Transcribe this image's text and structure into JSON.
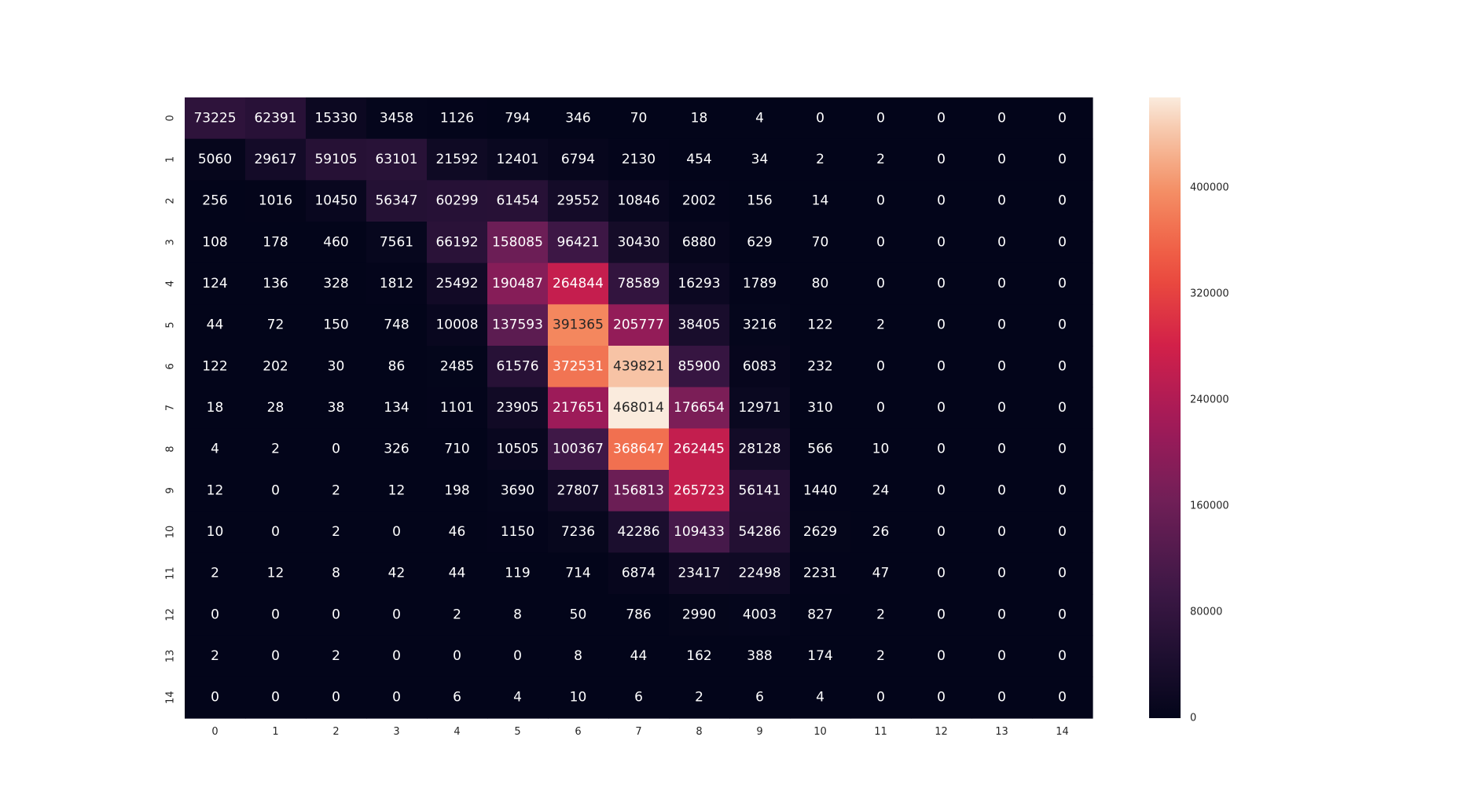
{
  "chart_data": {
    "type": "heatmap",
    "row_labels": [
      "0",
      "1",
      "2",
      "3",
      "4",
      "5",
      "6",
      "7",
      "8",
      "9",
      "10",
      "11",
      "12",
      "13",
      "14"
    ],
    "col_labels": [
      "0",
      "1",
      "2",
      "3",
      "4",
      "5",
      "6",
      "7",
      "8",
      "9",
      "10",
      "11",
      "12",
      "13",
      "14"
    ],
    "values": [
      [
        73225,
        62391,
        15330,
        3458,
        1126,
        794,
        346,
        70,
        18,
        4,
        0,
        0,
        0,
        0,
        0
      ],
      [
        5060,
        29617,
        59105,
        63101,
        21592,
        12401,
        6794,
        2130,
        454,
        34,
        2,
        2,
        0,
        0,
        0
      ],
      [
        256,
        1016,
        10450,
        56347,
        60299,
        61454,
        29552,
        10846,
        2002,
        156,
        14,
        0,
        0,
        0,
        0
      ],
      [
        108,
        178,
        460,
        7561,
        66192,
        158085,
        96421,
        30430,
        6880,
        629,
        70,
        0,
        0,
        0,
        0
      ],
      [
        124,
        136,
        328,
        1812,
        25492,
        190487,
        264844,
        78589,
        16293,
        1789,
        80,
        0,
        0,
        0,
        0
      ],
      [
        44,
        72,
        150,
        748,
        10008,
        137593,
        391365,
        205777,
        38405,
        3216,
        122,
        2,
        0,
        0,
        0
      ],
      [
        122,
        202,
        30,
        86,
        2485,
        61576,
        372531,
        439821,
        85900,
        6083,
        232,
        0,
        0,
        0,
        0
      ],
      [
        18,
        28,
        38,
        134,
        1101,
        23905,
        217651,
        468014,
        176654,
        12971,
        310,
        0,
        0,
        0,
        0
      ],
      [
        4,
        2,
        0,
        326,
        710,
        10505,
        100367,
        368647,
        262445,
        28128,
        566,
        10,
        0,
        0,
        0
      ],
      [
        12,
        0,
        2,
        12,
        198,
        3690,
        27807,
        156813,
        265723,
        56141,
        1440,
        24,
        0,
        0,
        0
      ],
      [
        10,
        0,
        2,
        0,
        46,
        1150,
        7236,
        42286,
        109433,
        54286,
        2629,
        26,
        0,
        0,
        0
      ],
      [
        2,
        12,
        8,
        42,
        44,
        119,
        714,
        6874,
        23417,
        22498,
        2231,
        47,
        0,
        0,
        0
      ],
      [
        0,
        0,
        0,
        0,
        2,
        8,
        50,
        786,
        2990,
        4003,
        827,
        2,
        0,
        0,
        0
      ],
      [
        2,
        0,
        2,
        0,
        0,
        0,
        8,
        44,
        162,
        388,
        174,
        2,
        0,
        0,
        0
      ],
      [
        0,
        0,
        0,
        0,
        6,
        4,
        10,
        6,
        2,
        6,
        4,
        0,
        0,
        0,
        0
      ]
    ],
    "colorbar": {
      "min": 0,
      "max": 468014,
      "ticks": [
        "0",
        "80000",
        "160000",
        "240000",
        "320000",
        "400000"
      ],
      "colormap": "rocket"
    },
    "annotations": true,
    "grid": false
  }
}
